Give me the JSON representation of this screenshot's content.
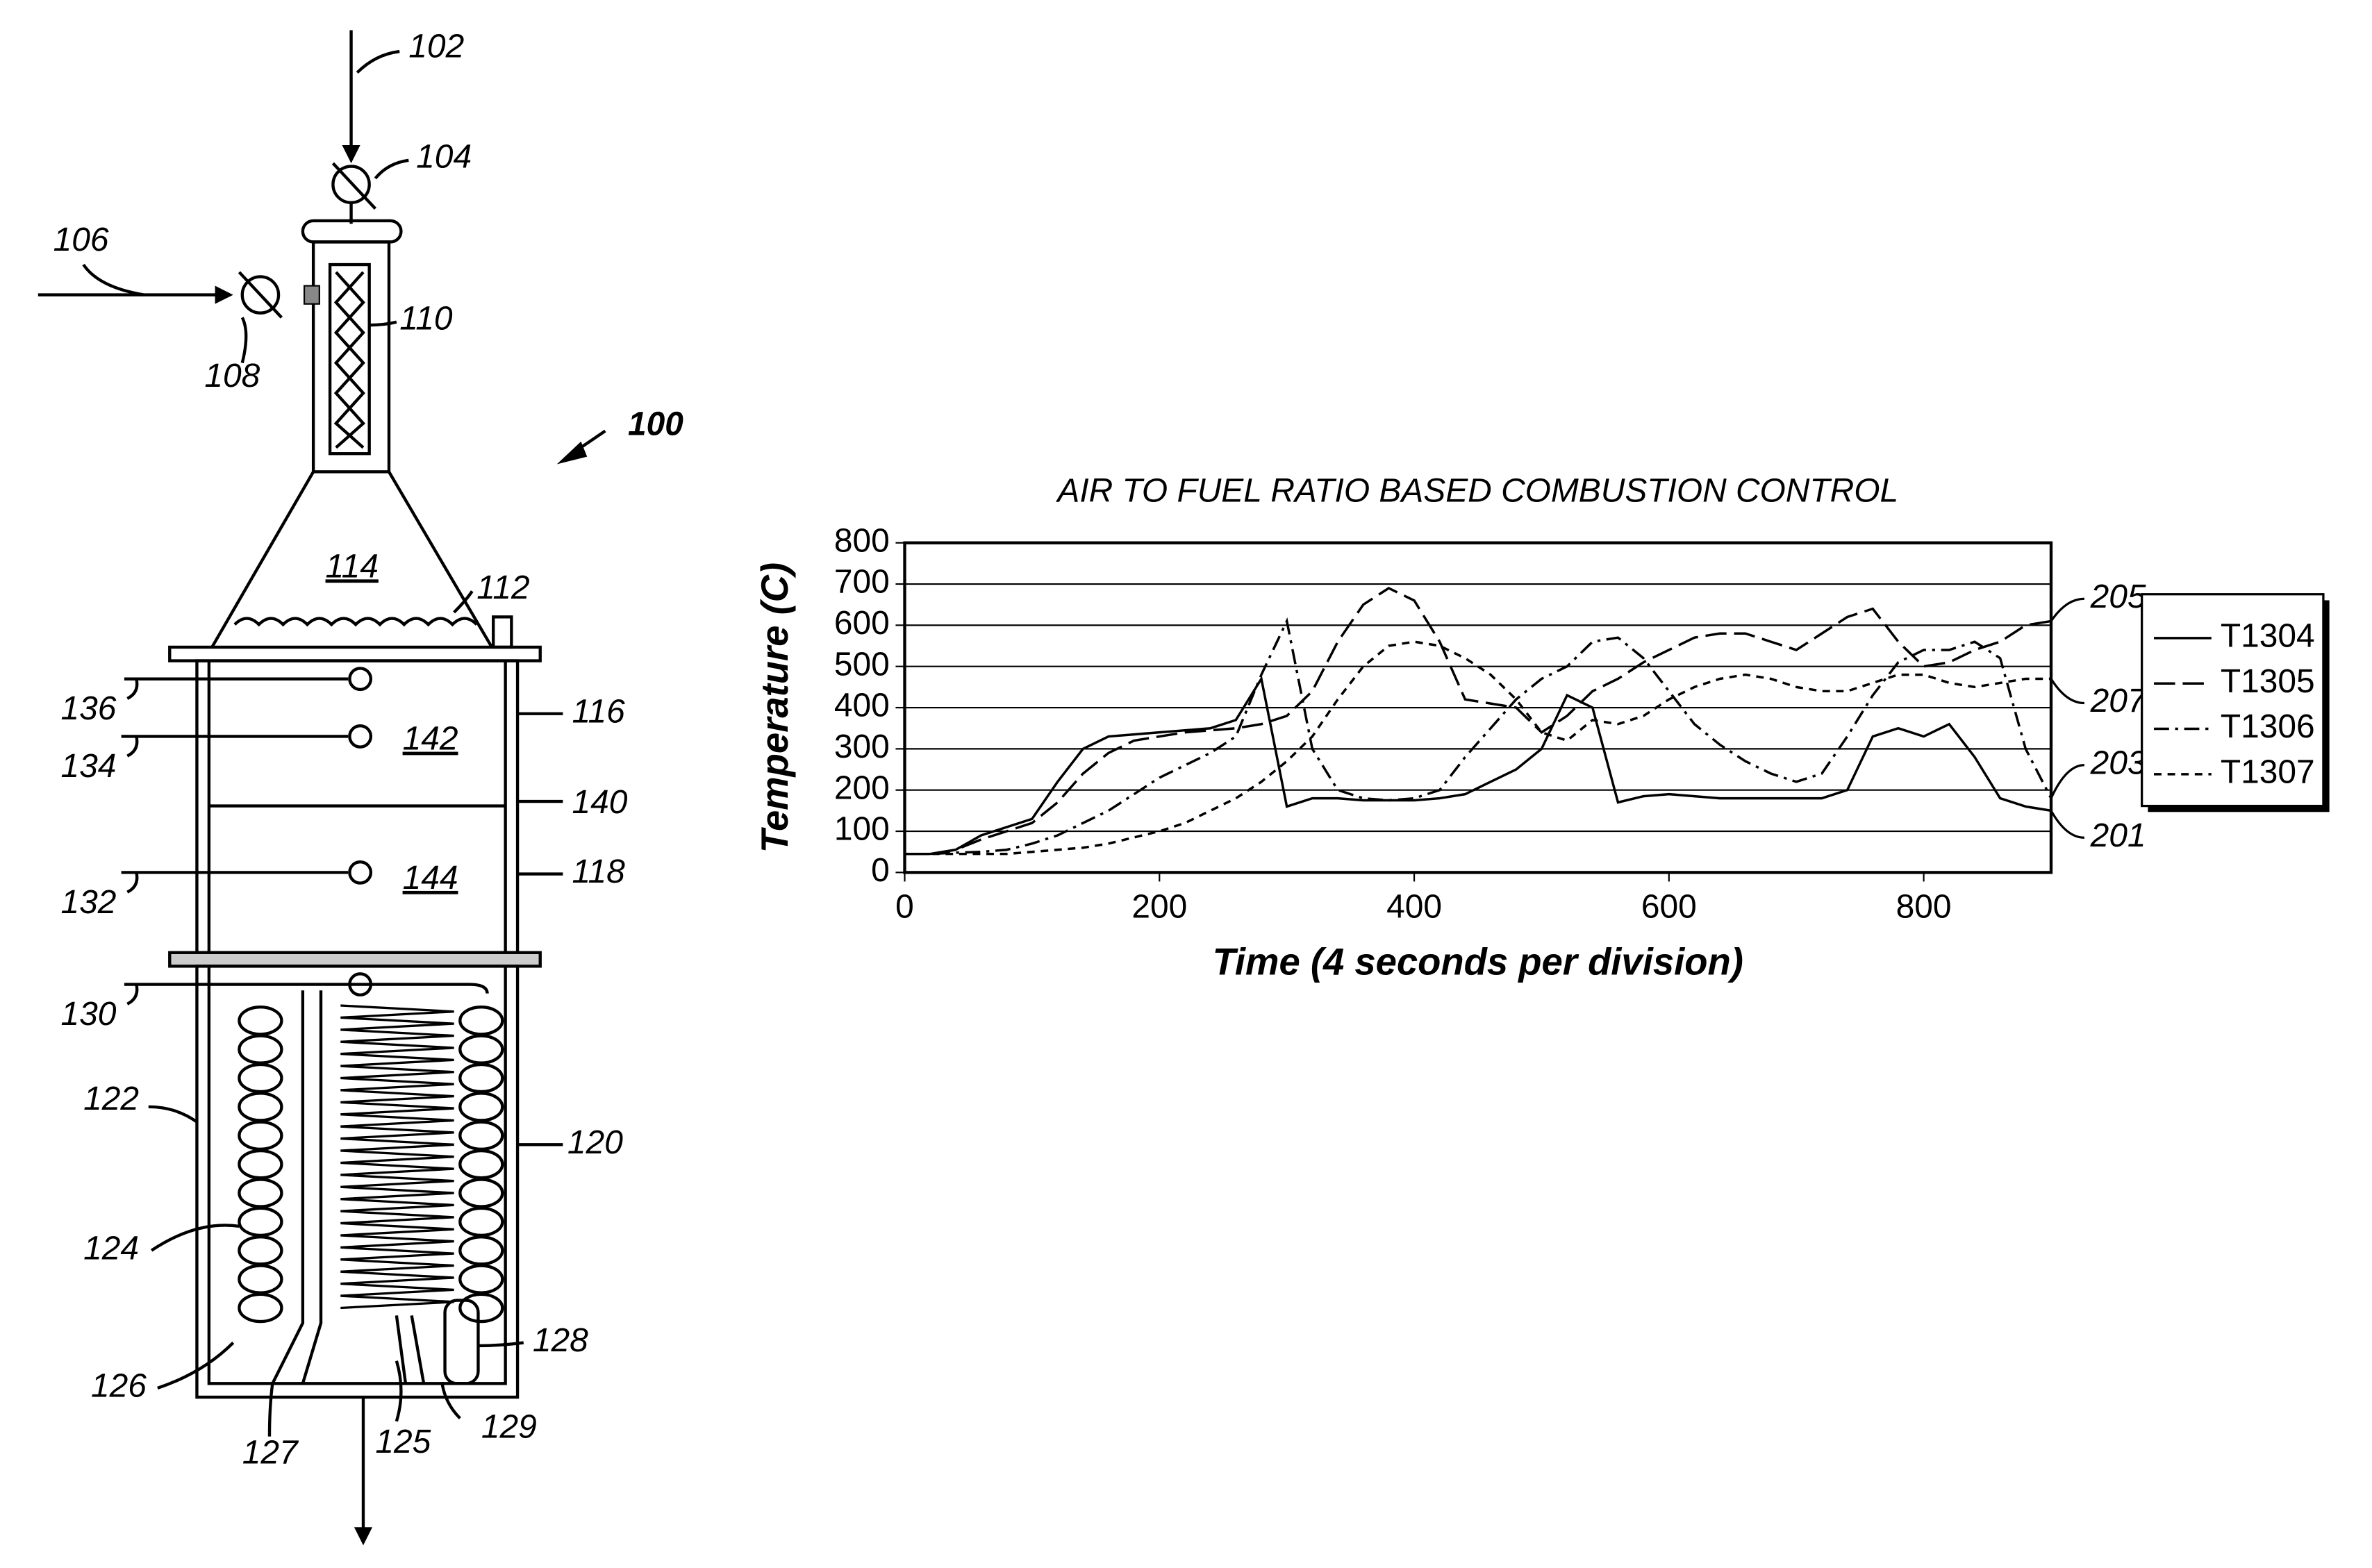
{
  "diagram": {
    "labels": [
      "102",
      "104",
      "106",
      "108",
      "110",
      "100",
      "114",
      "112",
      "136",
      "134",
      "142",
      "116",
      "140",
      "144",
      "132",
      "118",
      "130",
      "122",
      "120",
      "124",
      "126",
      "127",
      "125",
      "129",
      "128"
    ]
  },
  "chart_data": {
    "type": "line",
    "title": "AIR TO FUEL RATIO BASED COMBUSTION CONTROL",
    "x_label": "Time (4 seconds per division)",
    "y_label": "Temperature (C)",
    "x": [
      0,
      20,
      40,
      60,
      80,
      100,
      120,
      140,
      160,
      180,
      200,
      220,
      240,
      260,
      280,
      300,
      320,
      340,
      360,
      380,
      400,
      420,
      440,
      460,
      480,
      500,
      520,
      540,
      560,
      580,
      600,
      620,
      640,
      660,
      680,
      700,
      720,
      740,
      760,
      780,
      800,
      820,
      840,
      860,
      880,
      900
    ],
    "series": [
      {
        "name": "T1304",
        "color": "#000000",
        "linestyle": "solid",
        "values": [
          45,
          45,
          55,
          90,
          110,
          130,
          220,
          300,
          330,
          335,
          340,
          345,
          350,
          370,
          470,
          160,
          180,
          180,
          175,
          175,
          175,
          180,
          190,
          220,
          250,
          300,
          430,
          400,
          170,
          185,
          190,
          185,
          180,
          180,
          180,
          180,
          180,
          200,
          330,
          350,
          330,
          360,
          280,
          180,
          160,
          150
        ]
      },
      {
        "name": "T1305",
        "color": "#000000",
        "linestyle": "longdash",
        "values": [
          45,
          45,
          55,
          80,
          100,
          120,
          170,
          240,
          290,
          320,
          330,
          340,
          345,
          350,
          360,
          380,
          440,
          560,
          650,
          690,
          660,
          560,
          420,
          410,
          400,
          340,
          380,
          440,
          470,
          510,
          540,
          570,
          580,
          580,
          560,
          540,
          580,
          620,
          640,
          560,
          500,
          510,
          540,
          560,
          600,
          610
        ]
      },
      {
        "name": "T1306",
        "color": "#000000",
        "linestyle": "dashdot",
        "values": [
          45,
          45,
          48,
          50,
          55,
          70,
          90,
          120,
          150,
          190,
          230,
          260,
          290,
          330,
          480,
          610,
          300,
          200,
          180,
          175,
          180,
          200,
          280,
          350,
          420,
          470,
          500,
          560,
          570,
          520,
          440,
          360,
          310,
          270,
          240,
          220,
          240,
          330,
          430,
          510,
          540,
          540,
          560,
          520,
          300,
          180
        ]
      },
      {
        "name": "T1307",
        "color": "#000000",
        "linestyle": "dash",
        "values": [
          45,
          45,
          45,
          45,
          45,
          50,
          55,
          60,
          70,
          85,
          100,
          120,
          150,
          180,
          220,
          270,
          330,
          420,
          500,
          550,
          560,
          550,
          520,
          480,
          420,
          340,
          320,
          370,
          360,
          380,
          420,
          450,
          470,
          480,
          470,
          450,
          440,
          440,
          460,
          480,
          480,
          460,
          450,
          460,
          470,
          470
        ]
      }
    ],
    "annotations": [
      "205",
      "207",
      "203",
      "201"
    ],
    "xlim": [
      0,
      900
    ],
    "xticks": [
      0,
      200,
      400,
      600,
      800
    ],
    "ylim": [
      0,
      800
    ],
    "yticks": [
      0,
      100,
      200,
      300,
      400,
      500,
      600,
      700,
      800
    ],
    "grid": true,
    "legend": "right"
  }
}
